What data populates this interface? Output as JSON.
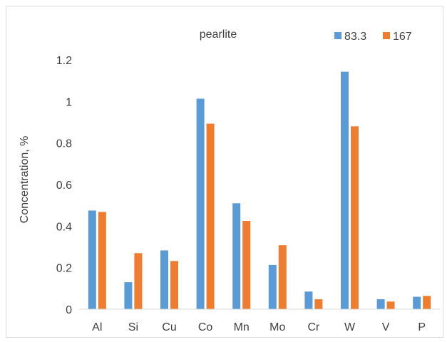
{
  "chart_data": {
    "type": "bar",
    "title": "pearlite",
    "xlabel": "",
    "ylabel": "Concentration, %",
    "categories": [
      "Al",
      "Si",
      "Cu",
      "Co",
      "Mn",
      "Mo",
      "Cr",
      "W",
      "V",
      "P"
    ],
    "series": [
      {
        "name": "83.3",
        "color": "#5B9BD5",
        "values": [
          0.475,
          0.13,
          0.283,
          1.013,
          0.51,
          0.213,
          0.085,
          1.143,
          0.048,
          0.06
        ]
      },
      {
        "name": "167",
        "color": "#ED7D31",
        "values": [
          0.468,
          0.27,
          0.232,
          0.893,
          0.425,
          0.308,
          0.048,
          0.88,
          0.037,
          0.064
        ]
      }
    ],
    "ylim": [
      0,
      1.2
    ],
    "yticks": [
      0,
      0.2,
      0.4,
      0.6,
      0.8,
      1,
      1.2
    ],
    "ytick_labels": [
      "0",
      "0.2",
      "0.4",
      "0.6",
      "0.8",
      "1",
      "1.2"
    ],
    "grid": false,
    "legend_position": "top-right"
  }
}
